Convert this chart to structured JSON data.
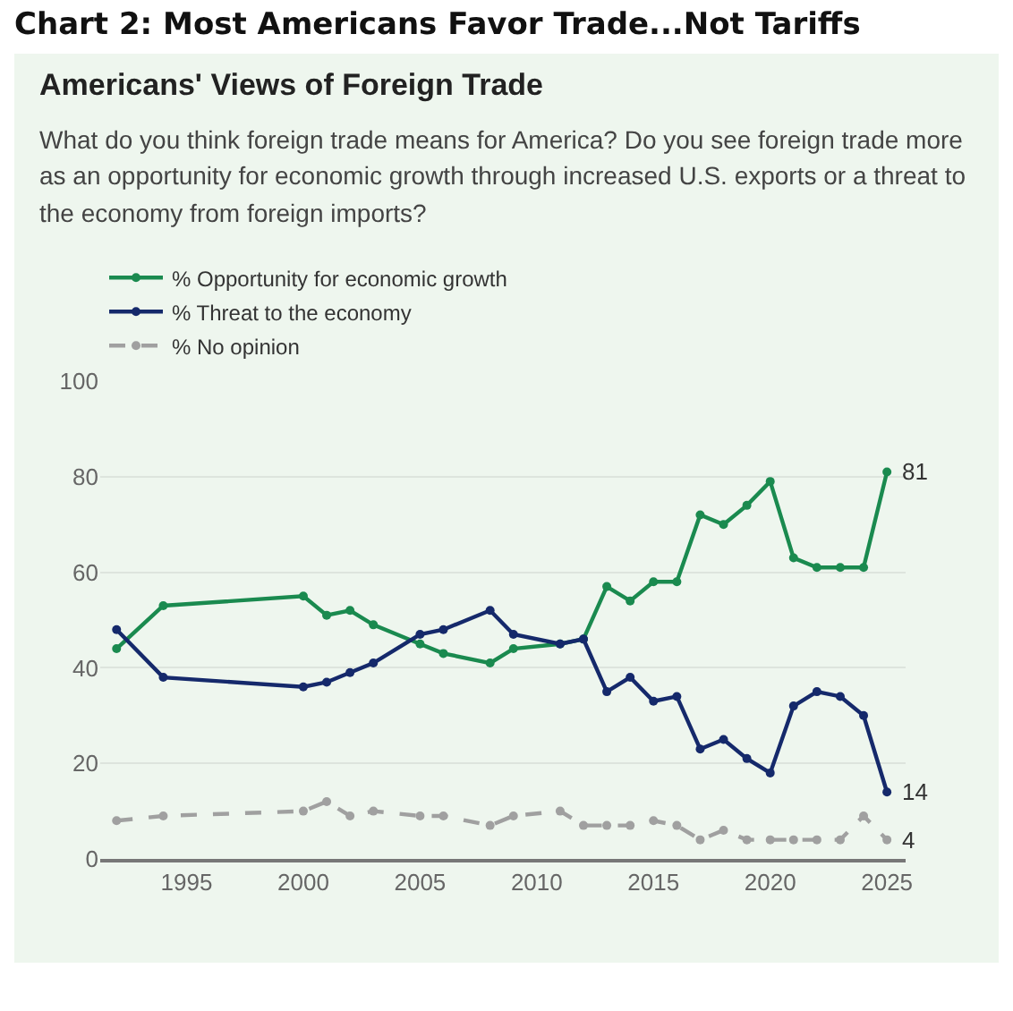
{
  "chart_data": {
    "type": "line",
    "title": "Chart 2: Most Americans Favor Trade...Not Tariffs",
    "subtitle": "Americans' Views of Foreign Trade",
    "annotations": [
      "What do you think foreign trade means for America? Do you see foreign trade more as an opportunity for economic growth through increased U.S. exports or a threat to the economy from foreign imports?"
    ],
    "x": [
      1992,
      1994,
      2000,
      2001,
      2002,
      2003,
      2005,
      2006,
      2008,
      2009,
      2011,
      2012,
      2013,
      2014,
      2015,
      2016,
      2017,
      2018,
      2019,
      2020,
      2021,
      2022,
      2023,
      2024,
      2025
    ],
    "series": [
      {
        "name": "% Opportunity for economic growth",
        "color": "#1a8a4f",
        "line_style": "solid",
        "values": [
          44,
          53,
          55,
          51,
          52,
          49,
          45,
          43,
          41,
          44,
          45,
          46,
          57,
          54,
          58,
          58,
          72,
          70,
          74,
          79,
          63,
          61,
          61,
          61,
          81
        ],
        "value_labels": [
          null,
          null,
          null,
          null,
          null,
          null,
          null,
          null,
          null,
          null,
          null,
          null,
          null,
          null,
          null,
          null,
          null,
          null,
          null,
          null,
          null,
          null,
          null,
          null,
          "81"
        ]
      },
      {
        "name": "% Threat to the economy",
        "color": "#15296b",
        "line_style": "solid",
        "values": [
          48,
          38,
          36,
          37,
          39,
          41,
          47,
          48,
          52,
          47,
          45,
          46,
          35,
          38,
          33,
          34,
          23,
          25,
          21,
          18,
          32,
          35,
          34,
          30,
          14
        ],
        "value_labels": [
          null,
          null,
          null,
          null,
          null,
          null,
          null,
          null,
          null,
          null,
          null,
          null,
          null,
          null,
          null,
          null,
          null,
          null,
          null,
          null,
          null,
          null,
          null,
          null,
          "14"
        ]
      },
      {
        "name": "% No opinion",
        "color": "#a0a0a0",
        "line_style": "dashed",
        "values": [
          8,
          9,
          10,
          12,
          9,
          10,
          9,
          9,
          7,
          9,
          10,
          7,
          7,
          7,
          8,
          7,
          4,
          6,
          4,
          4,
          4,
          4,
          4,
          9,
          4
        ],
        "value_labels": [
          null,
          null,
          null,
          null,
          null,
          null,
          null,
          null,
          null,
          null,
          null,
          null,
          null,
          null,
          null,
          null,
          null,
          null,
          null,
          null,
          null,
          null,
          null,
          null,
          "4"
        ]
      }
    ],
    "xlim": [
      1991.3,
      2025.8
    ],
    "xticks": [
      1995,
      2000,
      2005,
      2010,
      2015,
      2020,
      2025
    ],
    "ylim": [
      0,
      100
    ],
    "yticks": [
      0,
      20,
      40,
      60,
      80,
      100
    ],
    "grid": "y",
    "legend": "top",
    "marker": "circle"
  }
}
